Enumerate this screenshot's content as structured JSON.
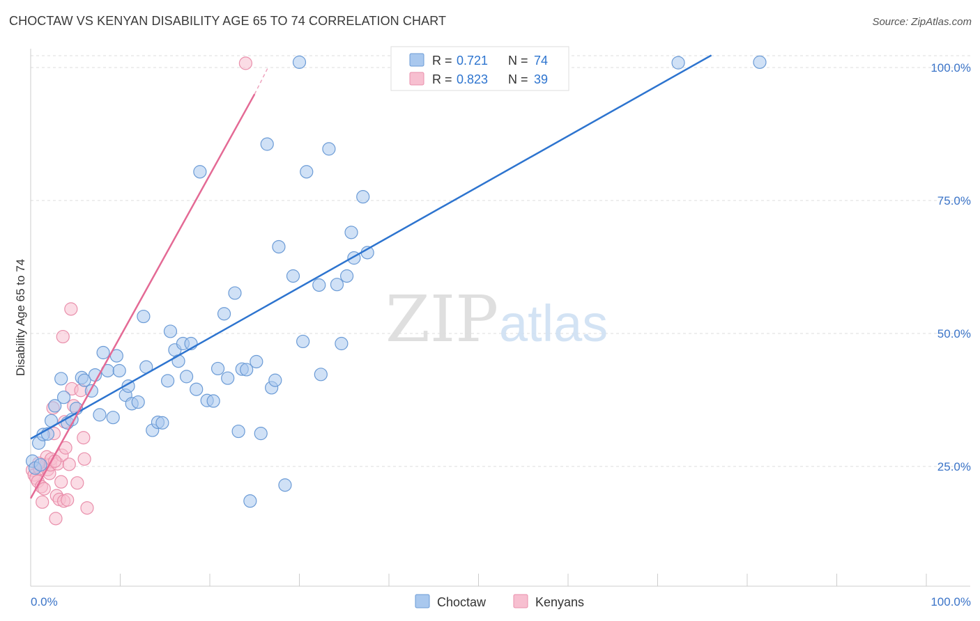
{
  "title": "CHOCTAW VS KENYAN DISABILITY AGE 65 TO 74 CORRELATION CHART",
  "source": "Source: ZipAtlas.com",
  "watermark": {
    "zip": "ZIP",
    "atlas": "atlas"
  },
  "colors": {
    "choctaw_fill": "#a9c8ee",
    "choctaw_stroke": "#6b9bd6",
    "choctaw_line": "#2d74cf",
    "kenyan_fill": "#f7bfd0",
    "kenyan_stroke": "#e98fab",
    "kenyan_line": "#e46a95",
    "tick_label": "#3b74c8",
    "grid": "#dddddd"
  },
  "stats_legend": [
    {
      "series": "Choctaw",
      "r_label": "R =",
      "r_value": "0.721",
      "n_label": "N =",
      "n_value": "74"
    },
    {
      "series": "Kenyans",
      "r_label": "R =",
      "r_value": "0.823",
      "n_label": "N =",
      "n_value": "39"
    }
  ],
  "chart_data": {
    "type": "scatter",
    "title": "CHOCTAW VS KENYAN DISABILITY AGE 65 TO 74 CORRELATION CHART",
    "xlabel": "",
    "ylabel": "Disability Age 65 to 74",
    "xlim": [
      0,
      100
    ],
    "ylim": [
      0,
      100
    ],
    "x_tick_labels": [
      "0.0%",
      "100.0%"
    ],
    "y_ticks": [
      25,
      50,
      75,
      100
    ],
    "y_tick_labels": [
      "25.0%",
      "50.0%",
      "75.0%",
      "100.0%"
    ],
    "grid": true,
    "legend_position": "bottom-center",
    "series": [
      {
        "name": "Choctaw",
        "color": "#a9c8ee",
        "trendline": {
          "x": [
            0,
            76
          ],
          "y": [
            30.2,
            102.3
          ]
        },
        "points": [
          [
            0.2,
            26.0
          ],
          [
            0.9,
            29.4
          ],
          [
            1.4,
            31.0
          ],
          [
            1.9,
            31.1
          ],
          [
            2.3,
            33.6
          ],
          [
            2.7,
            36.4
          ],
          [
            3.4,
            41.5
          ],
          [
            3.7,
            38.0
          ],
          [
            4.1,
            33.2
          ],
          [
            5.1,
            35.9
          ],
          [
            5.7,
            41.7
          ],
          [
            6.0,
            41.2
          ],
          [
            6.8,
            39.2
          ],
          [
            7.2,
            42.2
          ],
          [
            7.7,
            34.7
          ],
          [
            8.1,
            46.4
          ],
          [
            8.6,
            43.0
          ],
          [
            9.2,
            34.2
          ],
          [
            9.6,
            45.8
          ],
          [
            9.9,
            43.0
          ],
          [
            10.6,
            38.4
          ],
          [
            10.9,
            40.1
          ],
          [
            11.3,
            36.8
          ],
          [
            12.0,
            37.1
          ],
          [
            12.6,
            53.2
          ],
          [
            12.9,
            43.7
          ],
          [
            13.6,
            31.8
          ],
          [
            14.2,
            33.3
          ],
          [
            14.7,
            33.2
          ],
          [
            15.3,
            41.1
          ],
          [
            15.6,
            50.4
          ],
          [
            16.1,
            46.9
          ],
          [
            16.5,
            44.8
          ],
          [
            17.0,
            48.1
          ],
          [
            17.4,
            41.9
          ],
          [
            17.9,
            48.1
          ],
          [
            18.5,
            39.5
          ],
          [
            18.9,
            80.4
          ],
          [
            19.7,
            37.4
          ],
          [
            20.4,
            37.3
          ],
          [
            20.9,
            43.4
          ],
          [
            21.6,
            53.7
          ],
          [
            22.0,
            41.6
          ],
          [
            22.8,
            57.6
          ],
          [
            23.2,
            31.6
          ],
          [
            23.6,
            43.3
          ],
          [
            24.1,
            43.2
          ],
          [
            25.2,
            44.7
          ],
          [
            25.7,
            31.2
          ],
          [
            26.4,
            85.6
          ],
          [
            26.9,
            39.8
          ],
          [
            27.3,
            41.2
          ],
          [
            27.7,
            66.3
          ],
          [
            28.4,
            21.5
          ],
          [
            29.3,
            60.8
          ],
          [
            30.0,
            101.0
          ],
          [
            30.4,
            48.5
          ],
          [
            30.8,
            80.4
          ],
          [
            32.2,
            59.1
          ],
          [
            32.4,
            42.3
          ],
          [
            33.3,
            84.7
          ],
          [
            34.2,
            59.2
          ],
          [
            34.7,
            48.1
          ],
          [
            35.3,
            60.8
          ],
          [
            35.8,
            69.0
          ],
          [
            36.1,
            64.2
          ],
          [
            37.1,
            75.7
          ],
          [
            37.6,
            65.2
          ],
          [
            24.5,
            18.5
          ],
          [
            72.3,
            100.9
          ],
          [
            81.4,
            101.0
          ],
          [
            0.5,
            24.7
          ],
          [
            1.1,
            25.3
          ],
          [
            4.6,
            33.8
          ]
        ]
      },
      {
        "name": "Kenyans",
        "color": "#f7bfd0",
        "trendline": {
          "x": [
            0,
            25
          ],
          "y": [
            19.0,
            95.0
          ]
        },
        "trendline_dashed": {
          "x": [
            25,
            26.5
          ],
          "y": [
            95.0,
            100.0
          ]
        },
        "points": [
          [
            0.2,
            24.3
          ],
          [
            0.4,
            23.4
          ],
          [
            0.6,
            22.8
          ],
          [
            0.8,
            22.2
          ],
          [
            1.0,
            24.6
          ],
          [
            1.2,
            21.2
          ],
          [
            1.3,
            18.3
          ],
          [
            1.5,
            20.8
          ],
          [
            1.7,
            25.4
          ],
          [
            1.8,
            26.8
          ],
          [
            1.9,
            24.4
          ],
          [
            2.1,
            23.7
          ],
          [
            2.2,
            25.3
          ],
          [
            2.3,
            26.4
          ],
          [
            2.5,
            36.0
          ],
          [
            2.6,
            31.2
          ],
          [
            2.8,
            15.2
          ],
          [
            2.9,
            19.5
          ],
          [
            3.0,
            25.5
          ],
          [
            3.2,
            18.8
          ],
          [
            3.4,
            22.1
          ],
          [
            3.5,
            27.1
          ],
          [
            3.6,
            49.4
          ],
          [
            3.7,
            18.5
          ],
          [
            3.8,
            33.4
          ],
          [
            3.9,
            28.5
          ],
          [
            4.1,
            18.7
          ],
          [
            4.3,
            25.4
          ],
          [
            4.5,
            54.6
          ],
          [
            4.6,
            39.6
          ],
          [
            4.8,
            36.4
          ],
          [
            5.2,
            21.9
          ],
          [
            5.6,
            39.3
          ],
          [
            5.9,
            30.4
          ],
          [
            6.0,
            26.4
          ],
          [
            6.3,
            17.2
          ],
          [
            24.0,
            100.8
          ],
          [
            2.7,
            26.0
          ],
          [
            0.9,
            25.6
          ]
        ]
      }
    ]
  }
}
